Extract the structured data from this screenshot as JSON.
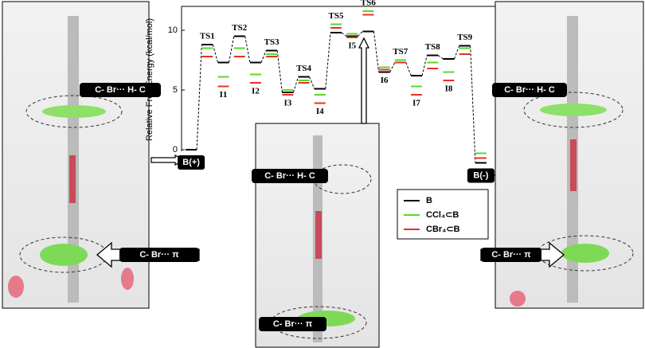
{
  "chart_data": {
    "type": "energy",
    "y_label": "Relative Free Energy (kcal/mol)",
    "categories": [
      "B(+)",
      "TS1",
      "I1",
      "TS2",
      "I2",
      "TS3",
      "I3",
      "TS4",
      "I4",
      "TS5",
      "I5",
      "TS6",
      "I6",
      "TS7",
      "I7",
      "TS8",
      "I8",
      "TS9",
      "B(-)"
    ],
    "series": [
      {
        "name": "B",
        "color": "#000000",
        "values": [
          0,
          8.8,
          7.3,
          9.5,
          7.3,
          8.3,
          4.8,
          6.1,
          5.1,
          9.8,
          9.5,
          9.9,
          6.5,
          7.3,
          6.2,
          7.9,
          7.6,
          8.7,
          -1.1
        ]
      },
      {
        "name": "CCl₄⊂B",
        "color": "#5ad62a",
        "values": [
          null,
          8.5,
          6.1,
          8.5,
          6.3,
          8.0,
          5.0,
          5.8,
          4.6,
          10.5,
          9.7,
          11.6,
          6.9,
          7.5,
          5.3,
          7.3,
          6.5,
          8.5,
          -0.3
        ]
      },
      {
        "name": "CBr₄⊂B",
        "color": "#e8302a",
        "values": [
          null,
          7.8,
          5.3,
          7.8,
          5.6,
          7.8,
          4.6,
          5.6,
          3.9,
          10.2,
          9.4,
          11.3,
          6.7,
          7.3,
          4.6,
          6.8,
          5.8,
          8.0,
          -0.7
        ]
      }
    ],
    "ylim": [
      0,
      12
    ],
    "yticks": [
      0,
      5,
      10
    ]
  },
  "panel_labels": [
    "C- Br··· H- C",
    "C- Br··· π",
    "C- Br··· H- C",
    "C- Br··· π",
    "C- Br··· H- C",
    "C- Br··· π"
  ]
}
